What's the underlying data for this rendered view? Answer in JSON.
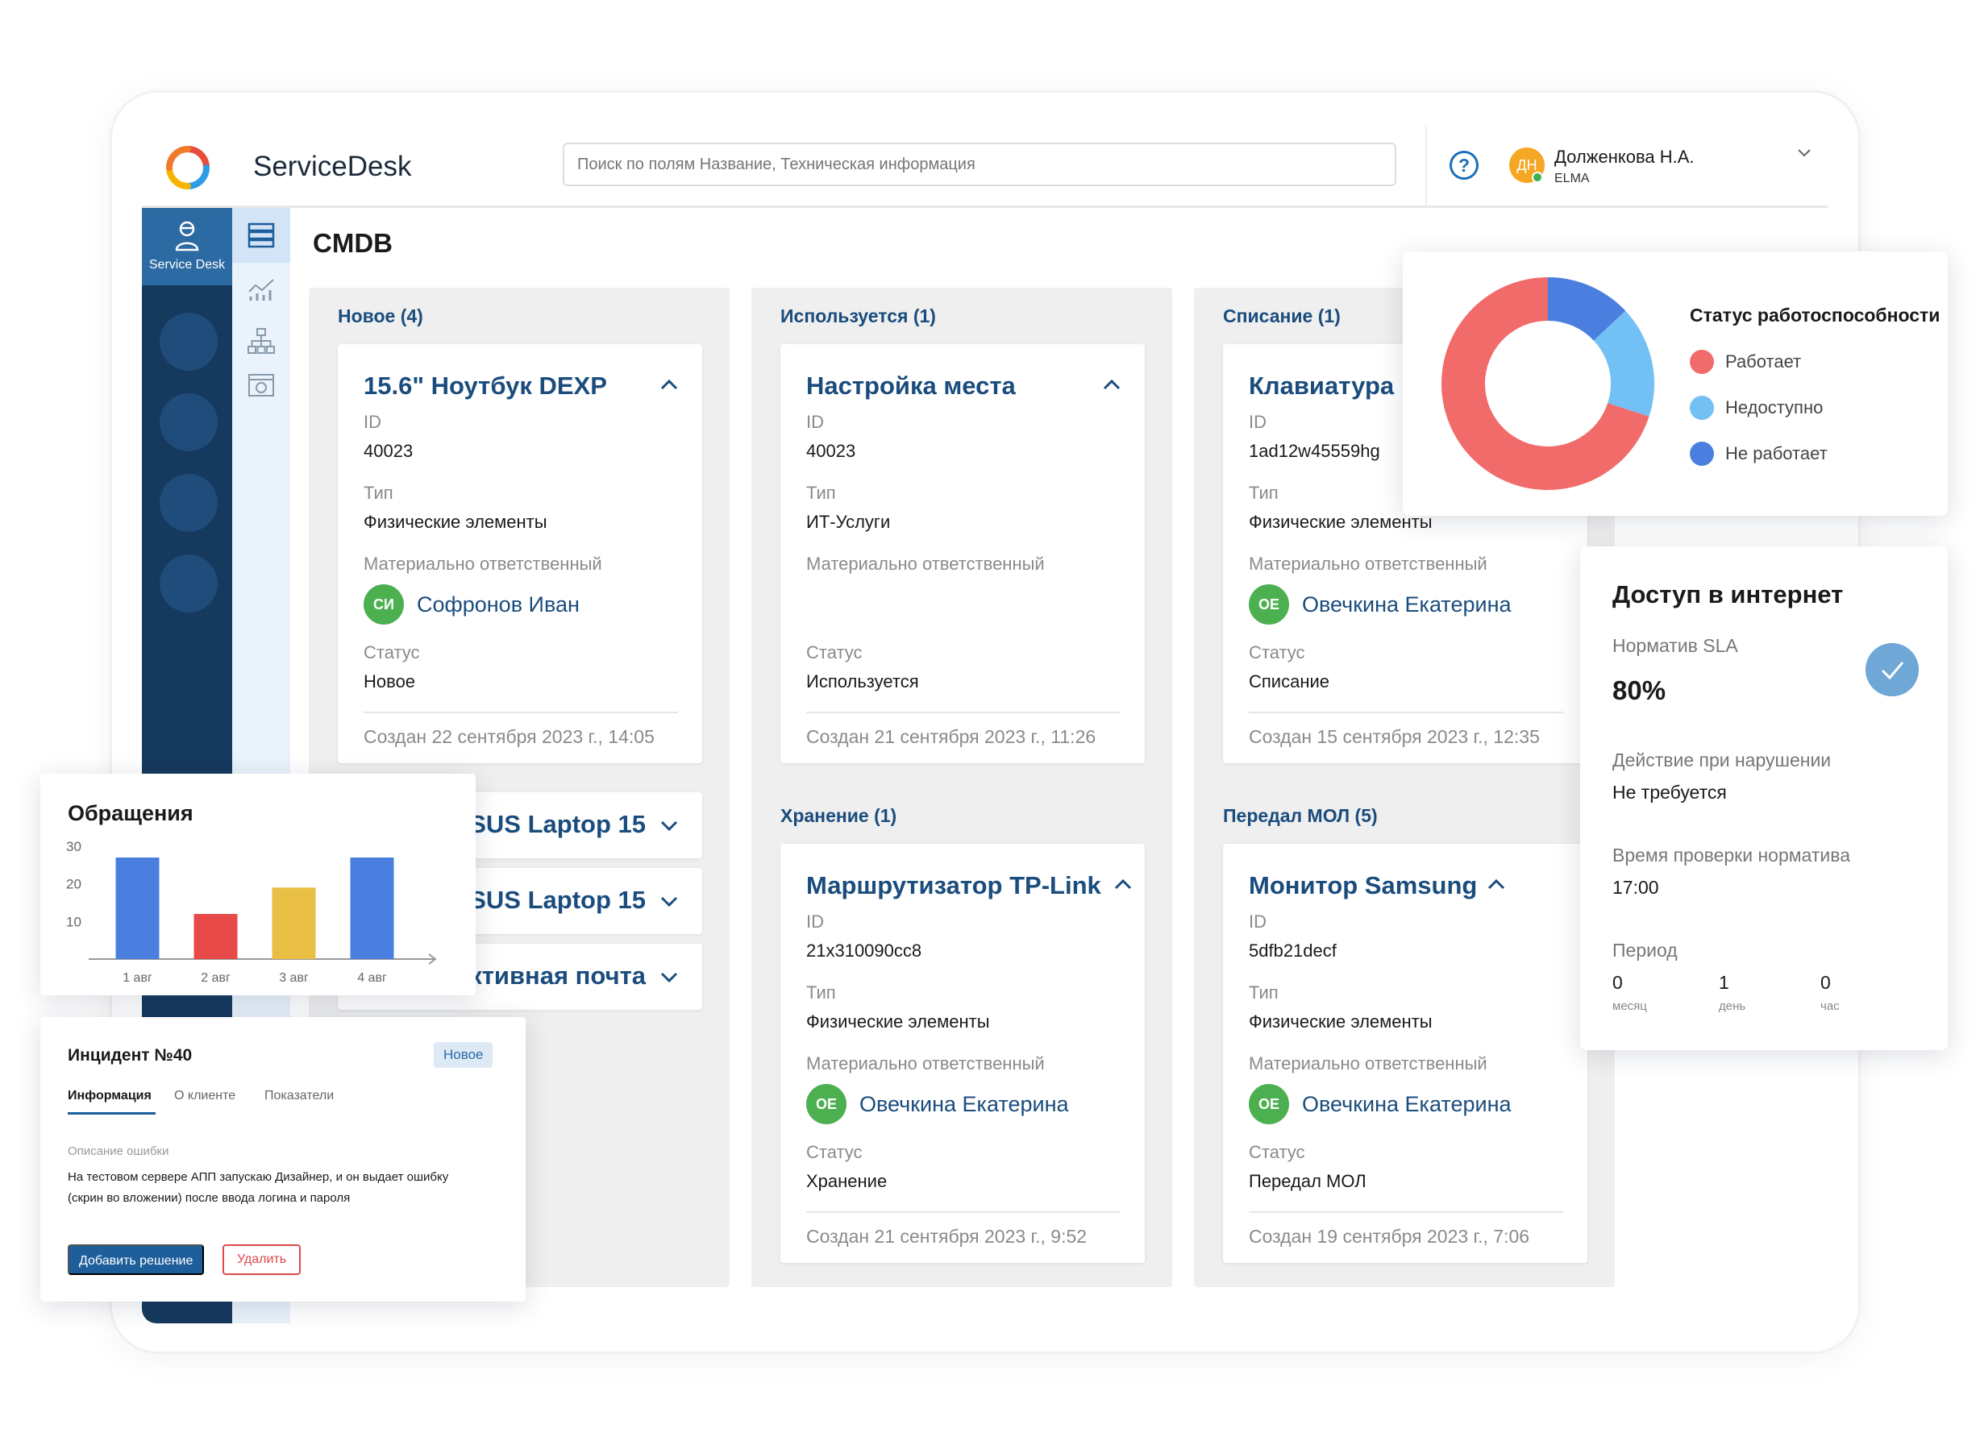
{
  "header": {
    "brand": "ServiceDesk",
    "search_placeholder": "Поиск по полям Название, Техническая информация",
    "help_label": "?",
    "user": {
      "initials": "ДН",
      "name": "Долженкова Н.А.",
      "org": "ELMA",
      "avatar_color": "#f5a623"
    }
  },
  "sidebar": {
    "active_label": "Service Desk"
  },
  "page": {
    "title": "CMDB"
  },
  "board": {
    "columns": [
      {
        "header": "Новое (4)",
        "cards": [
          {
            "title": "15.6\" Ноутбук DEXP",
            "id_label": "ID",
            "id": "40023",
            "type_label": "Тип",
            "type": "Физические элементы",
            "owner_label": "Материально ответственный",
            "owner_initials": "СИ",
            "owner": "Софронов Иван",
            "status_label": "Статус",
            "status": "Новое",
            "created": "Создан 22 сентября 2023 г., 14:05"
          }
        ],
        "collapsed": [
          "ASUS Laptop 15",
          "ASUS Laptop 15",
          "Активная почта"
        ]
      },
      {
        "header": "Используется (1)",
        "cards": [
          {
            "title": "Настройка места",
            "id_label": "ID",
            "id": "40023",
            "type_label": "Тип",
            "type": "ИТ-Услуги",
            "owner_label": "Материально ответственный",
            "status_label": "Статус",
            "status": "Используется",
            "created": "Создан 21 сентября 2023 г., 11:26"
          }
        ]
      },
      {
        "header": "Хранение (1)",
        "cards": [
          {
            "title": "Маршрутизатор TP-Link",
            "id_label": "ID",
            "id": "21x310090cc8",
            "type_label": "Тип",
            "type": "Физические элементы",
            "owner_label": "Материально ответственный",
            "owner_initials": "ОЕ",
            "owner": "Овечкина Екатерина",
            "status_label": "Статус",
            "status": "Хранение",
            "created": "Создан 21 сентября 2023 г., 9:52"
          }
        ]
      },
      {
        "header": "Списание (1)",
        "cards": [
          {
            "title": "Клавиатура",
            "id_label": "ID",
            "id": "1ad12w45559hg",
            "type_label": "Тип",
            "type": "Физические элементы",
            "owner_label": "Материально ответственный",
            "owner_initials": "ОЕ",
            "owner": "Овечкина Екатерина",
            "status_label": "Статус",
            "status": "Списание",
            "created": "Создан 15 сентября 2023 г., 12:35"
          }
        ]
      },
      {
        "header": "Передал МОЛ (5)",
        "cards": [
          {
            "title": "Монитор Samsung",
            "id_label": "ID",
            "id": "5dfb21decf",
            "type_label": "Тип",
            "type": "Физические элементы",
            "owner_label": "Материально ответственный",
            "owner_initials": "ОЕ",
            "owner": "Овечкина Екатерина",
            "status_label": "Статус",
            "status": "Передал МОЛ",
            "created": "Создан 19 сентября 2023 г., 7:06"
          }
        ]
      }
    ]
  },
  "status_widget": {
    "title": "Статус работоспособности",
    "legend": [
      {
        "label": "Работает",
        "color": "#f26b6b"
      },
      {
        "label": "Недоступно",
        "color": "#73c0f5"
      },
      {
        "label": "Не работает",
        "color": "#4a7fe0"
      }
    ]
  },
  "sla_widget": {
    "title": "Доступ в интернет",
    "norm_label": "Норматив SLA",
    "norm_value": "80%",
    "action_label": "Действие при нарушении",
    "action_value": "Не требуется",
    "check_label": "Время проверки норматива",
    "check_value": "17:00",
    "period_label": "Период",
    "period": [
      {
        "value": "0",
        "unit": "месяц"
      },
      {
        "value": "1",
        "unit": "день"
      },
      {
        "value": "0",
        "unit": "час"
      }
    ]
  },
  "incident": {
    "title": "Инцидент №40",
    "badge": "Новое",
    "tabs": [
      "Информация",
      "О клиенте",
      "Показатели"
    ],
    "error_label": "Описание ошибки",
    "error_text": "На тестовом сервере АПП запускаю Дизайнер, и он выдает ошибку (скрин во вложении) после ввода логина и пароля",
    "add_solution": "Добавить решение",
    "delete": "Удалить"
  },
  "chart_data": [
    {
      "type": "pie",
      "title": "Статус работоспособности",
      "categories": [
        "Работает",
        "Недоступно",
        "Не работает"
      ],
      "values": [
        70,
        17,
        13
      ],
      "colors": [
        "#f26b6b",
        "#73c0f5",
        "#4a7fe0"
      ]
    },
    {
      "type": "bar",
      "title": "Обращения",
      "categories": [
        "1 авг",
        "2 авг",
        "3 авг",
        "4 авг"
      ],
      "values": [
        27,
        12,
        19,
        27
      ],
      "colors": [
        "#4a7fe0",
        "#e84a4a",
        "#e8be45",
        "#4a7fe0"
      ],
      "yticks": [
        10,
        20,
        30
      ],
      "ylim": [
        0,
        30
      ]
    }
  ]
}
